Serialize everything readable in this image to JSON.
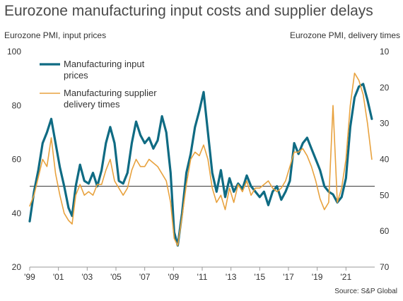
{
  "title": "Eurozone manufacturing input costs and supplier delays",
  "source": "Source: S&P Global",
  "chart_data": {
    "type": "line",
    "title": "Eurozone manufacturing input costs and supplier delays",
    "ylabel_left": "Eurozone PMI, input prices",
    "ylabel_right": "Eurozone PMI, delivery times",
    "ylim_left": [
      20,
      100
    ],
    "ylim_right_inverted": [
      10,
      70
    ],
    "yticks_left": [
      "100",
      "80",
      "60",
      "40",
      "20"
    ],
    "yticks_right": [
      "10",
      "20",
      "30",
      "40",
      "50",
      "60",
      "70"
    ],
    "xlim": [
      1999.0,
      2023.0
    ],
    "xticks": [
      "'99",
      "'01",
      "'03",
      "'05",
      "'07",
      "'09",
      "'11",
      "'13",
      "'15",
      "'17",
      "'19",
      "'21"
    ],
    "reference_line_left": 50,
    "grid": false,
    "legend_position": "top-left",
    "colors": {
      "input_prices": "#0f6b83",
      "delivery_times": "#e8a23e",
      "reference": "#333333"
    },
    "series": [
      {
        "name": "Manufacturing input prices",
        "axis": "left",
        "x": [
          1999.0,
          1999.3,
          1999.6,
          1999.9,
          2000.2,
          2000.5,
          2000.8,
          2001.1,
          2001.4,
          2001.7,
          2001.95,
          2002.2,
          2002.5,
          2002.8,
          2003.1,
          2003.4,
          2003.7,
          2004.0,
          2004.3,
          2004.6,
          2004.9,
          2005.2,
          2005.5,
          2005.8,
          2006.1,
          2006.4,
          2006.7,
          2007.0,
          2007.3,
          2007.6,
          2007.9,
          2008.2,
          2008.5,
          2008.8,
          2009.05,
          2009.3,
          2009.6,
          2009.9,
          2010.2,
          2010.5,
          2010.8,
          2011.1,
          2011.4,
          2011.7,
          2012.0,
          2012.3,
          2012.6,
          2012.9,
          2013.2,
          2013.5,
          2013.8,
          2014.1,
          2014.4,
          2014.7,
          2015.0,
          2015.3,
          2015.6,
          2015.9,
          2016.2,
          2016.5,
          2016.8,
          2017.1,
          2017.4,
          2017.7,
          2018.0,
          2018.3,
          2018.6,
          2018.9,
          2019.2,
          2019.5,
          2019.8,
          2020.1,
          2020.4,
          2020.7,
          2021.0,
          2021.3,
          2021.6,
          2021.9,
          2022.2,
          2022.5,
          2022.8
        ],
        "values": [
          37,
          48,
          56,
          66,
          70,
          75,
          66,
          57,
          50,
          42,
          39,
          50,
          58,
          52,
          51,
          55,
          50,
          56,
          66,
          72,
          66,
          52,
          51,
          55,
          66,
          74,
          69,
          66,
          68,
          64,
          67,
          76,
          70,
          55,
          33,
          28,
          40,
          55,
          62,
          72,
          78,
          85,
          70,
          55,
          48,
          56,
          46,
          53,
          48,
          51,
          49,
          54,
          50,
          48,
          46,
          48,
          43,
          48,
          50,
          45,
          48,
          52,
          66,
          62,
          66,
          68,
          64,
          60,
          56,
          50,
          48,
          47,
          44,
          46,
          53,
          72,
          83,
          87,
          88,
          82,
          75
        ]
      },
      {
        "name": "Manufacturing supplier delivery times",
        "axis": "right",
        "x": [
          1999.0,
          1999.3,
          1999.6,
          1999.9,
          2000.2,
          2000.5,
          2000.8,
          2001.1,
          2001.4,
          2001.7,
          2001.95,
          2002.2,
          2002.5,
          2002.8,
          2003.1,
          2003.4,
          2003.7,
          2004.0,
          2004.3,
          2004.6,
          2004.9,
          2005.2,
          2005.5,
          2005.8,
          2006.1,
          2006.4,
          2006.7,
          2007.0,
          2007.3,
          2007.6,
          2007.9,
          2008.2,
          2008.5,
          2008.8,
          2009.05,
          2009.3,
          2009.6,
          2009.9,
          2010.2,
          2010.5,
          2010.8,
          2011.1,
          2011.4,
          2011.7,
          2012.0,
          2012.3,
          2012.6,
          2012.9,
          2013.2,
          2013.5,
          2013.8,
          2014.1,
          2014.4,
          2014.7,
          2015.0,
          2015.3,
          2015.6,
          2015.9,
          2016.2,
          2016.5,
          2016.8,
          2017.1,
          2017.4,
          2017.7,
          2018.0,
          2018.3,
          2018.6,
          2018.9,
          2019.2,
          2019.5,
          2019.8,
          2020.1,
          2020.4,
          2020.7,
          2021.0,
          2021.3,
          2021.6,
          2021.9,
          2022.2,
          2022.5,
          2022.8
        ],
        "values": [
          53,
          50,
          45,
          40,
          42,
          34,
          44,
          50,
          55,
          57,
          58,
          50,
          47,
          50,
          49,
          50,
          47,
          47,
          43,
          40,
          46,
          48,
          50,
          48,
          43,
          40,
          42,
          42,
          40,
          41,
          42,
          44,
          46,
          52,
          62,
          64,
          56,
          47,
          40,
          38,
          39,
          36,
          40,
          48,
          52,
          50,
          54,
          48,
          52,
          47,
          49,
          46,
          50,
          48,
          48,
          47,
          46,
          48,
          49,
          48,
          46,
          42,
          38,
          38,
          37,
          39,
          42,
          46,
          51,
          54,
          52,
          25,
          52,
          48,
          40,
          25,
          16,
          18,
          22,
          30,
          40
        ]
      }
    ]
  }
}
